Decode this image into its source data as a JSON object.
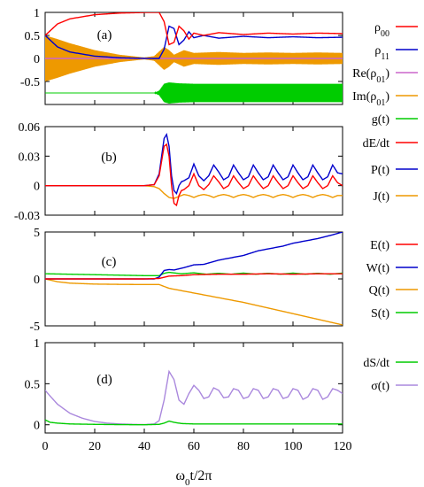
{
  "chart_data": [
    {
      "type": "line",
      "panel_label": "(a)",
      "xlim": [
        0,
        120
      ],
      "ylim": [
        -1,
        1
      ],
      "yticks": [
        -0.5,
        0,
        0.5,
        1
      ],
      "ytick_labels": [
        "-0.5",
        "0",
        "0.5",
        "1"
      ],
      "grid": false,
      "legend_position": "right",
      "series": [
        {
          "name": "ρ00",
          "label": "ρ",
          "sub": "00",
          "color": "#ff0000",
          "x": [
            0,
            5,
            10,
            20,
            30,
            40,
            44,
            46,
            48,
            50,
            52,
            54,
            56,
            58,
            60,
            64,
            70,
            80,
            90,
            100,
            110,
            120
          ],
          "y": [
            0.5,
            0.75,
            0.86,
            0.95,
            0.985,
            0.998,
            1.0,
            1.0,
            0.8,
            0.3,
            0.35,
            0.7,
            0.6,
            0.42,
            0.55,
            0.5,
            0.56,
            0.52,
            0.55,
            0.53,
            0.55,
            0.54
          ]
        },
        {
          "name": "ρ11",
          "label": "ρ",
          "sub": "11",
          "color": "#0000cc",
          "x": [
            0,
            5,
            10,
            20,
            30,
            40,
            44,
            46,
            48,
            50,
            52,
            54,
            56,
            58,
            60,
            64,
            70,
            80,
            90,
            100,
            110,
            120
          ],
          "y": [
            0.5,
            0.25,
            0.14,
            0.05,
            0.015,
            0.002,
            0.0,
            0.0,
            0.2,
            0.7,
            0.65,
            0.3,
            0.4,
            0.58,
            0.45,
            0.5,
            0.44,
            0.48,
            0.45,
            0.47,
            0.45,
            0.46
          ]
        },
        {
          "name": "Re(ρ01)",
          "label": "Re(ρ",
          "sub": "01",
          "suffix": ")",
          "color": "#cc66cc",
          "x": [
            0,
            46,
            120
          ],
          "y": [
            0,
            0,
            0
          ]
        },
        {
          "name": "Im(ρ01)",
          "label": "Im(ρ",
          "sub": "01",
          "suffix": ")",
          "color": "#ee9900",
          "envelope_x": [
            0,
            5,
            10,
            20,
            30,
            40,
            44,
            46,
            48,
            50,
            52,
            56,
            60,
            70,
            80,
            90,
            100,
            110,
            120
          ],
          "envelope_amplitude": [
            0.5,
            0.42,
            0.33,
            0.18,
            0.08,
            0.02,
            0.05,
            0.15,
            0.25,
            0.18,
            0.08,
            0.18,
            0.12,
            0.14,
            0.12,
            0.13,
            0.12,
            0.13,
            0.12
          ]
        },
        {
          "name": "g(t)",
          "label": "g(t)",
          "color": "#00cc00",
          "baseline": -0.75,
          "envelope_x": [
            0,
            44,
            46,
            48,
            50,
            54,
            60,
            70,
            80,
            90,
            100,
            110,
            120
          ],
          "envelope_amplitude": [
            0,
            0,
            0.05,
            0.2,
            0.23,
            0.21,
            0.2,
            0.2,
            0.2,
            0.2,
            0.2,
            0.2,
            0.2
          ]
        }
      ]
    },
    {
      "type": "line",
      "panel_label": "(b)",
      "xlim": [
        0,
        120
      ],
      "ylim": [
        -0.03,
        0.06
      ],
      "yticks": [
        -0.03,
        0,
        0.03,
        0.06
      ],
      "ytick_labels": [
        "-0.03",
        "0",
        "0.03",
        "0.06"
      ],
      "grid": false,
      "legend_position": "right",
      "series": [
        {
          "name": "dE/dt",
          "label": "dE/dt",
          "color": "#ff0000",
          "x": [
            0,
            40,
            44,
            46,
            48,
            49,
            50,
            51,
            52,
            53,
            54,
            55,
            56,
            58,
            60,
            62,
            64,
            66,
            68,
            70,
            72,
            74,
            76,
            78,
            80,
            82,
            84,
            86,
            88,
            90,
            92,
            94,
            96,
            98,
            100,
            102,
            104,
            106,
            108,
            110,
            112,
            114,
            116,
            118,
            120
          ],
          "y": [
            0,
            0,
            0.001,
            0.01,
            0.04,
            0.042,
            0.03,
            0.0,
            -0.018,
            -0.02,
            -0.01,
            -0.005,
            -0.004,
            0.0,
            0.012,
            0.0,
            -0.004,
            0.001,
            0.01,
            0.004,
            -0.003,
            0.0,
            0.01,
            0.003,
            -0.003,
            0.0,
            0.01,
            0.003,
            -0.003,
            0.0,
            0.01,
            0.003,
            -0.003,
            0.0,
            0.01,
            0.003,
            -0.003,
            0.0,
            0.01,
            0.003,
            -0.003,
            0.0,
            0.01,
            0.003,
            0.0
          ]
        },
        {
          "name": "P(t)",
          "label": "P(t)",
          "color": "#0000cc",
          "x": [
            0,
            40,
            44,
            46,
            48,
            49,
            50,
            51,
            52,
            53,
            54,
            55,
            56,
            58,
            60,
            62,
            64,
            66,
            68,
            70,
            72,
            74,
            76,
            78,
            80,
            82,
            84,
            86,
            88,
            90,
            92,
            94,
            96,
            98,
            100,
            102,
            104,
            106,
            108,
            110,
            112,
            114,
            116,
            118,
            120
          ],
          "y": [
            0,
            0,
            0.001,
            0.012,
            0.048,
            0.052,
            0.04,
            0.01,
            -0.005,
            -0.008,
            0.0,
            0.004,
            0.005,
            0.008,
            0.022,
            0.01,
            0.005,
            0.01,
            0.021,
            0.014,
            0.006,
            0.009,
            0.021,
            0.013,
            0.006,
            0.009,
            0.021,
            0.013,
            0.006,
            0.009,
            0.021,
            0.013,
            0.006,
            0.009,
            0.021,
            0.013,
            0.006,
            0.009,
            0.021,
            0.013,
            0.006,
            0.009,
            0.021,
            0.013,
            0.012
          ]
        },
        {
          "name": "J(t)",
          "label": "J(t)",
          "color": "#ee9900",
          "x": [
            0,
            40,
            44,
            46,
            48,
            50,
            52,
            54,
            56,
            58,
            60,
            62,
            64,
            66,
            68,
            70,
            72,
            74,
            76,
            78,
            80,
            82,
            84,
            86,
            88,
            90,
            92,
            94,
            96,
            98,
            100,
            102,
            104,
            106,
            108,
            110,
            112,
            114,
            116,
            118,
            120
          ],
          "y": [
            0,
            0,
            -0.001,
            -0.003,
            -0.008,
            -0.012,
            -0.013,
            -0.011,
            -0.009,
            -0.01,
            -0.012,
            -0.01,
            -0.009,
            -0.01,
            -0.012,
            -0.01,
            -0.009,
            -0.01,
            -0.012,
            -0.01,
            -0.009,
            -0.01,
            -0.012,
            -0.01,
            -0.009,
            -0.01,
            -0.012,
            -0.01,
            -0.009,
            -0.01,
            -0.012,
            -0.01,
            -0.009,
            -0.01,
            -0.012,
            -0.01,
            -0.009,
            -0.01,
            -0.012,
            -0.01,
            -0.01
          ]
        }
      ]
    },
    {
      "type": "line",
      "panel_label": "(c)",
      "xlim": [
        0,
        120
      ],
      "ylim": [
        -5,
        5
      ],
      "yticks": [
        -5,
        0,
        5
      ],
      "ytick_labels": [
        "-5",
        "0",
        "5"
      ],
      "grid": false,
      "legend_position": "right",
      "series": [
        {
          "name": "E(t)",
          "label": "E(t)",
          "color": "#ff0000",
          "x": [
            0,
            20,
            40,
            46,
            50,
            55,
            60,
            70,
            80,
            90,
            100,
            110,
            120
          ],
          "y": [
            0,
            0,
            0,
            0.05,
            0.3,
            0.35,
            0.45,
            0.5,
            0.5,
            0.55,
            0.5,
            0.55,
            0.55
          ]
        },
        {
          "name": "W(t)",
          "label": "W(t)",
          "color": "#0000cc",
          "x": [
            0,
            44,
            46,
            48,
            50,
            52,
            56,
            60,
            64,
            70,
            76,
            80,
            86,
            90,
            96,
            100,
            106,
            110,
            116,
            120
          ],
          "y": [
            0,
            0,
            0.2,
            0.9,
            1.0,
            0.95,
            1.2,
            1.5,
            1.55,
            2.0,
            2.3,
            2.5,
            3.0,
            3.2,
            3.5,
            3.8,
            4.1,
            4.3,
            4.7,
            5.0
          ]
        },
        {
          "name": "Q(t)",
          "label": "Q(t)",
          "color": "#ee9900",
          "x": [
            0,
            5,
            10,
            20,
            30,
            40,
            46,
            50,
            60,
            70,
            80,
            90,
            100,
            110,
            120
          ],
          "y": [
            0,
            -0.3,
            -0.45,
            -0.55,
            -0.58,
            -0.6,
            -0.6,
            -1.0,
            -1.5,
            -2.0,
            -2.5,
            -3.1,
            -3.7,
            -4.3,
            -4.9
          ]
        },
        {
          "name": "S(t)",
          "label": "S(t)",
          "color": "#00cc00",
          "x": [
            0,
            20,
            40,
            46,
            48,
            50,
            55,
            60,
            65,
            70,
            75,
            80,
            85,
            90,
            95,
            100,
            105,
            110,
            115,
            120
          ],
          "y": [
            0.55,
            0.45,
            0.35,
            0.35,
            0.6,
            0.7,
            0.55,
            0.65,
            0.5,
            0.6,
            0.5,
            0.62,
            0.5,
            0.6,
            0.5,
            0.62,
            0.5,
            0.6,
            0.5,
            0.62
          ]
        }
      ]
    },
    {
      "type": "line",
      "panel_label": "(d)",
      "xlim": [
        0,
        120
      ],
      "ylim": [
        -0.1,
        1
      ],
      "yticks": [
        0,
        0.5,
        1
      ],
      "ytick_labels": [
        "0",
        "0.5",
        "1"
      ],
      "xticks": [
        0,
        20,
        40,
        60,
        80,
        100,
        120
      ],
      "xtick_labels": [
        "0",
        "20",
        "40",
        "60",
        "80",
        "100",
        "120"
      ],
      "xlabel": "ω0t/2π",
      "grid": false,
      "legend_position": "right",
      "series": [
        {
          "name": "dS/dt",
          "label": "dS/dt",
          "color": "#00cc00",
          "x": [
            0,
            2,
            5,
            10,
            20,
            30,
            40,
            46,
            48,
            50,
            52,
            55,
            60,
            80,
            100,
            120
          ],
          "y": [
            0.06,
            0.03,
            0.02,
            0.01,
            0.005,
            0.002,
            0.0,
            0.005,
            0.02,
            0.045,
            0.03,
            0.015,
            0.01,
            0.01,
            0.01,
            0.01
          ]
        },
        {
          "name": "σ(t)",
          "label": "σ(t)",
          "color": "#aa88dd",
          "x": [
            0,
            2,
            5,
            10,
            15,
            20,
            25,
            30,
            35,
            40,
            44,
            46,
            48,
            50,
            52,
            54,
            56,
            58,
            60,
            62,
            64,
            66,
            68,
            70,
            72,
            74,
            76,
            78,
            80,
            82,
            84,
            86,
            88,
            90,
            92,
            94,
            96,
            98,
            100,
            102,
            104,
            106,
            108,
            110,
            112,
            114,
            116,
            118,
            120
          ],
          "y": [
            0.42,
            0.35,
            0.25,
            0.14,
            0.08,
            0.04,
            0.02,
            0.01,
            0.005,
            0.002,
            0.01,
            0.05,
            0.3,
            0.65,
            0.55,
            0.3,
            0.25,
            0.38,
            0.48,
            0.42,
            0.32,
            0.34,
            0.45,
            0.42,
            0.33,
            0.34,
            0.44,
            0.42,
            0.32,
            0.34,
            0.44,
            0.42,
            0.32,
            0.34,
            0.44,
            0.42,
            0.32,
            0.34,
            0.44,
            0.42,
            0.31,
            0.34,
            0.44,
            0.42,
            0.31,
            0.34,
            0.44,
            0.42,
            0.38
          ]
        }
      ]
    }
  ]
}
